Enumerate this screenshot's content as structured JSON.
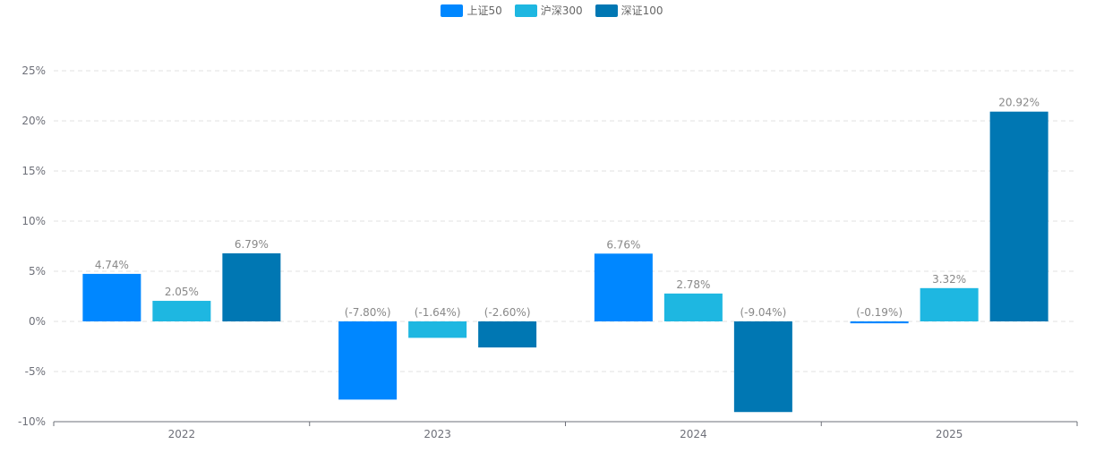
{
  "chart_data": {
    "type": "bar",
    "categories": [
      "2022",
      "2023",
      "2024",
      "2025"
    ],
    "series": [
      {
        "name": "上证50",
        "color": "#0087ff",
        "values": [
          4.74,
          -7.8,
          6.76,
          -0.19
        ],
        "labels": [
          "4.74%",
          "(-7.80%)",
          "6.76%",
          "(-0.19%)"
        ]
      },
      {
        "name": "沪深300",
        "color": "#1eb7e1",
        "values": [
          2.05,
          -1.64,
          2.78,
          3.32
        ],
        "labels": [
          "2.05%",
          "(-1.64%)",
          "2.78%",
          "3.32%"
        ]
      },
      {
        "name": "深证100",
        "color": "#0077b3",
        "values": [
          6.79,
          -2.6,
          -9.04,
          20.92
        ],
        "labels": [
          "6.79%",
          "(-2.60%)",
          "(-9.04%)",
          "20.92%"
        ]
      }
    ],
    "ylim": [
      -10,
      25
    ],
    "yticks": [
      25,
      20,
      15,
      10,
      5,
      0,
      -5,
      -10
    ],
    "ytick_labels": [
      "25%",
      "20%",
      "15%",
      "10%",
      "5%",
      "0%",
      "-5%",
      "-10%"
    ],
    "grid": true,
    "legend_position": "top-center"
  }
}
